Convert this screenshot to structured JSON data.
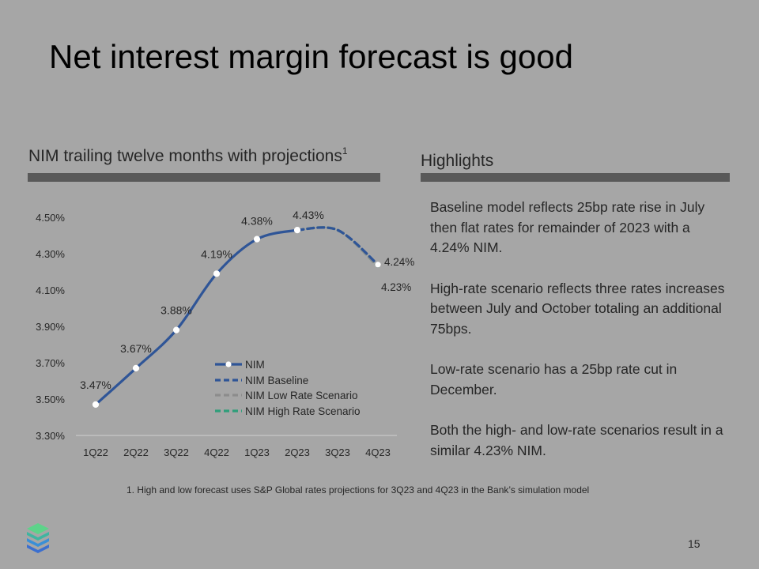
{
  "slide": {
    "title": "Net interest margin forecast is good",
    "chart_heading": "NIM trailing twelve months with projections",
    "chart_heading_sup": "1",
    "highlights_heading": "Highlights",
    "highlights": [
      "Baseline model reflects 25bp rate rise in July then flat rates for remainder of 2023 with a 4.24% NIM.",
      "High-rate scenario reflects three rates increases between July and October totaling an additional 75bps.",
      "Low-rate scenario has a 25bp rate cut in December.",
      "Both the high- and low-rate scenarios result in a similar 4.23% NIM."
    ],
    "footnote": "1.  High and low forecast uses S&P Global rates projections for 3Q23 and 4Q23 in the Bank’s simulation model",
    "page_number": "15",
    "logo_icon": "stacked-layers-logo-icon"
  },
  "chart_data": {
    "type": "line",
    "categories": [
      "1Q22",
      "2Q22",
      "3Q22",
      "4Q22",
      "1Q23",
      "2Q23",
      "3Q23",
      "4Q23"
    ],
    "y_ticks": [
      "4.50%",
      "4.30%",
      "4.10%",
      "3.90%",
      "3.70%",
      "3.50%",
      "3.30%"
    ],
    "ylim": [
      3.3,
      4.5
    ],
    "grid": false,
    "legend_position": "center",
    "series": [
      {
        "name": "NIM",
        "color": "#2f5597",
        "style": "solid",
        "markers": true,
        "values": [
          3.47,
          3.67,
          3.88,
          4.19,
          4.38,
          4.43,
          null,
          null
        ],
        "labels": [
          "3.47%",
          "3.67%",
          "3.88%",
          "4.19%",
          "4.38%",
          "4.43%",
          null,
          null
        ]
      },
      {
        "name": "NIM Baseline",
        "color": "#2f5597",
        "style": "dashed",
        "markers": false,
        "values": [
          null,
          null,
          null,
          null,
          null,
          4.43,
          4.43,
          4.24
        ],
        "labels": [
          null,
          null,
          null,
          null,
          null,
          null,
          null,
          "4.24%"
        ]
      },
      {
        "name": "NIM Low Rate Scenario",
        "color": "#8c8c8c",
        "style": "dashed",
        "markers": false,
        "values": [
          null,
          null,
          null,
          null,
          null,
          4.43,
          4.43,
          4.23
        ],
        "labels": [
          null,
          null,
          null,
          null,
          null,
          null,
          null,
          "4.23%"
        ]
      },
      {
        "name": "NIM High Rate Scenario",
        "color": "#2e9e7a",
        "style": "dashed",
        "markers": false,
        "values": [
          null,
          null,
          null,
          null,
          null,
          4.43,
          4.43,
          4.23
        ],
        "labels": [
          null,
          null,
          null,
          null,
          null,
          null,
          null,
          null
        ]
      }
    ]
  }
}
